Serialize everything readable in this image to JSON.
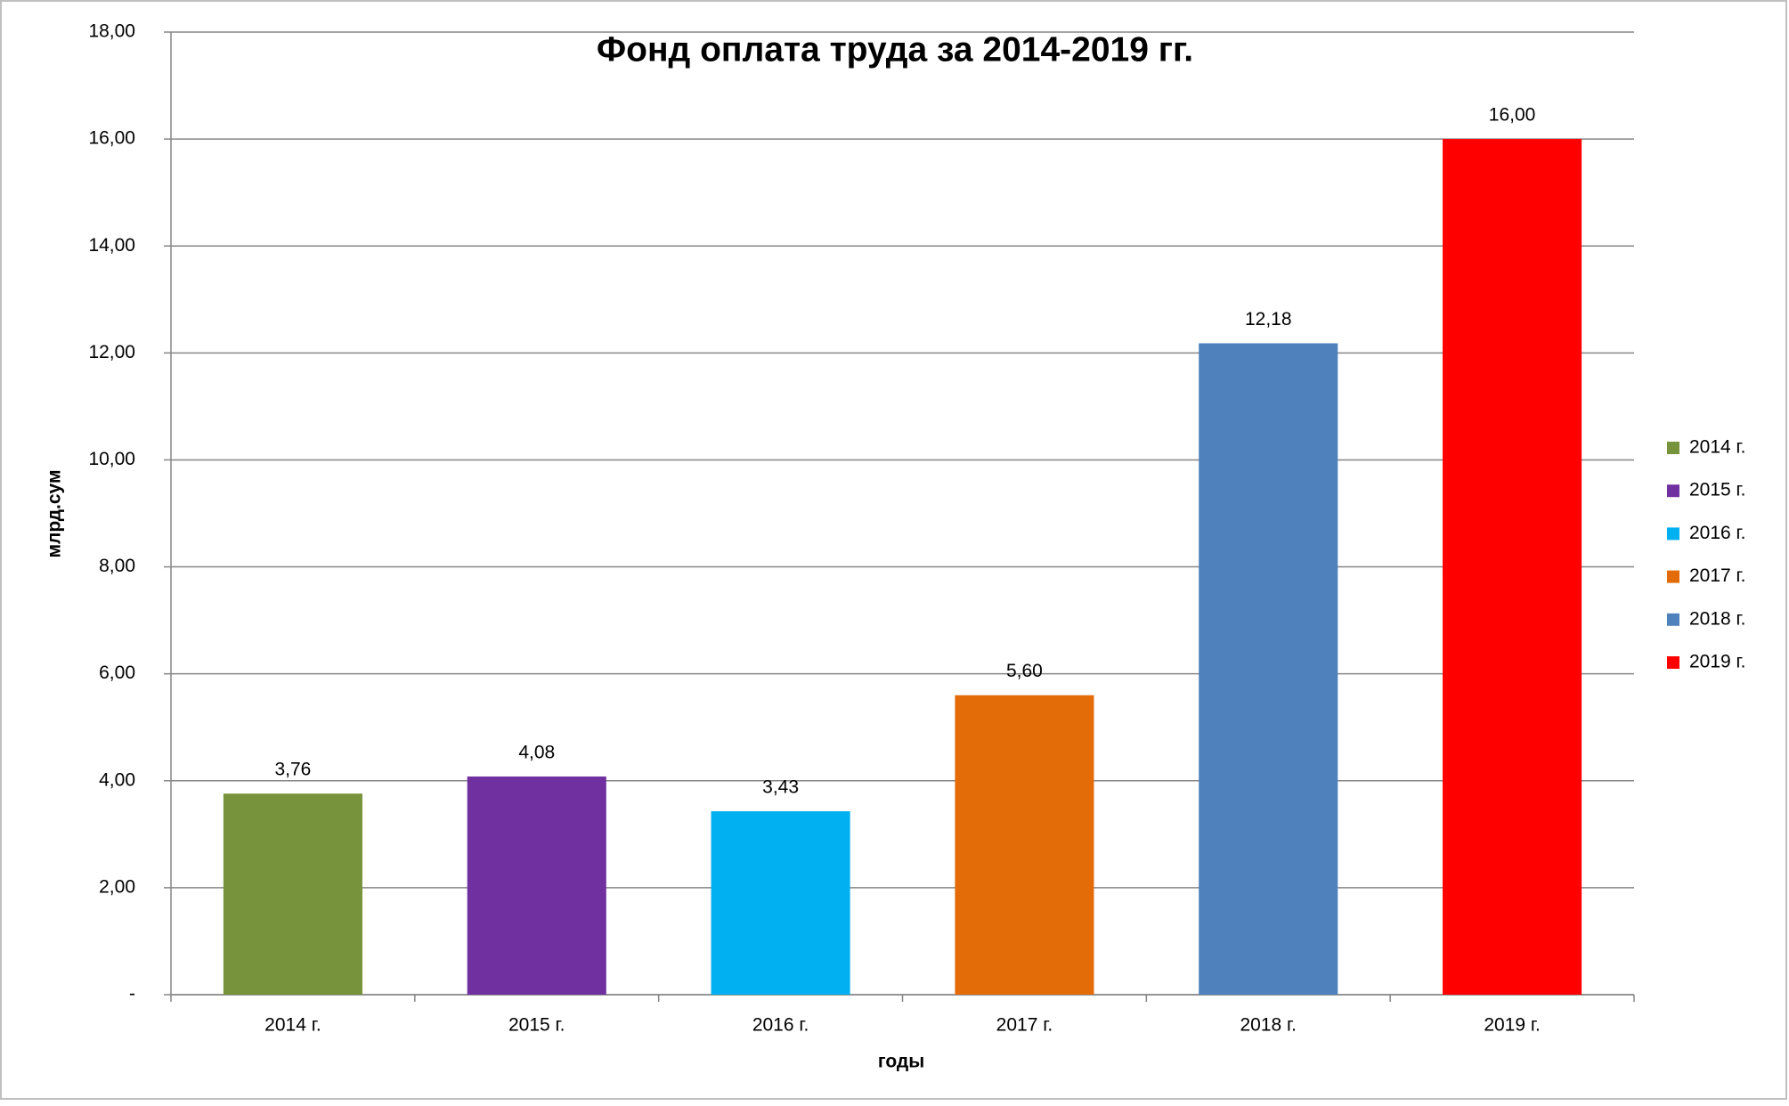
{
  "chart_data": {
    "type": "bar",
    "title": "Фонд оплата труда за 2014-2019 гг.",
    "x_label": "годы",
    "y_label": "млрд.сум",
    "categories": [
      "2014 г.",
      "2015 г.",
      "2016 г.",
      "2017 г.",
      "2018 г.",
      "2019 г."
    ],
    "values": [
      3.76,
      4.08,
      3.43,
      5.6,
      12.18,
      16.0
    ],
    "value_labels": [
      "3,76",
      "4,08",
      "3,43",
      "5,60",
      "12,18",
      "16,00"
    ],
    "colors": [
      "#77933c",
      "#7030a0",
      "#00b0f0",
      "#e36c09",
      "#4f81bd",
      "#ff0000"
    ],
    "ylim": [
      0,
      18
    ],
    "yticks": [
      {
        "value": 0,
        "label": "-"
      },
      {
        "value": 2,
        "label": "2,00"
      },
      {
        "value": 4,
        "label": "4,00"
      },
      {
        "value": 6,
        "label": "6,00"
      },
      {
        "value": 8,
        "label": "8,00"
      },
      {
        "value": 10,
        "label": "10,00"
      },
      {
        "value": 12,
        "label": "12,00"
      },
      {
        "value": 14,
        "label": "14,00"
      },
      {
        "value": 16,
        "label": "16,00"
      },
      {
        "value": 18,
        "label": "18,00"
      }
    ],
    "grid": true,
    "legend": "right"
  }
}
